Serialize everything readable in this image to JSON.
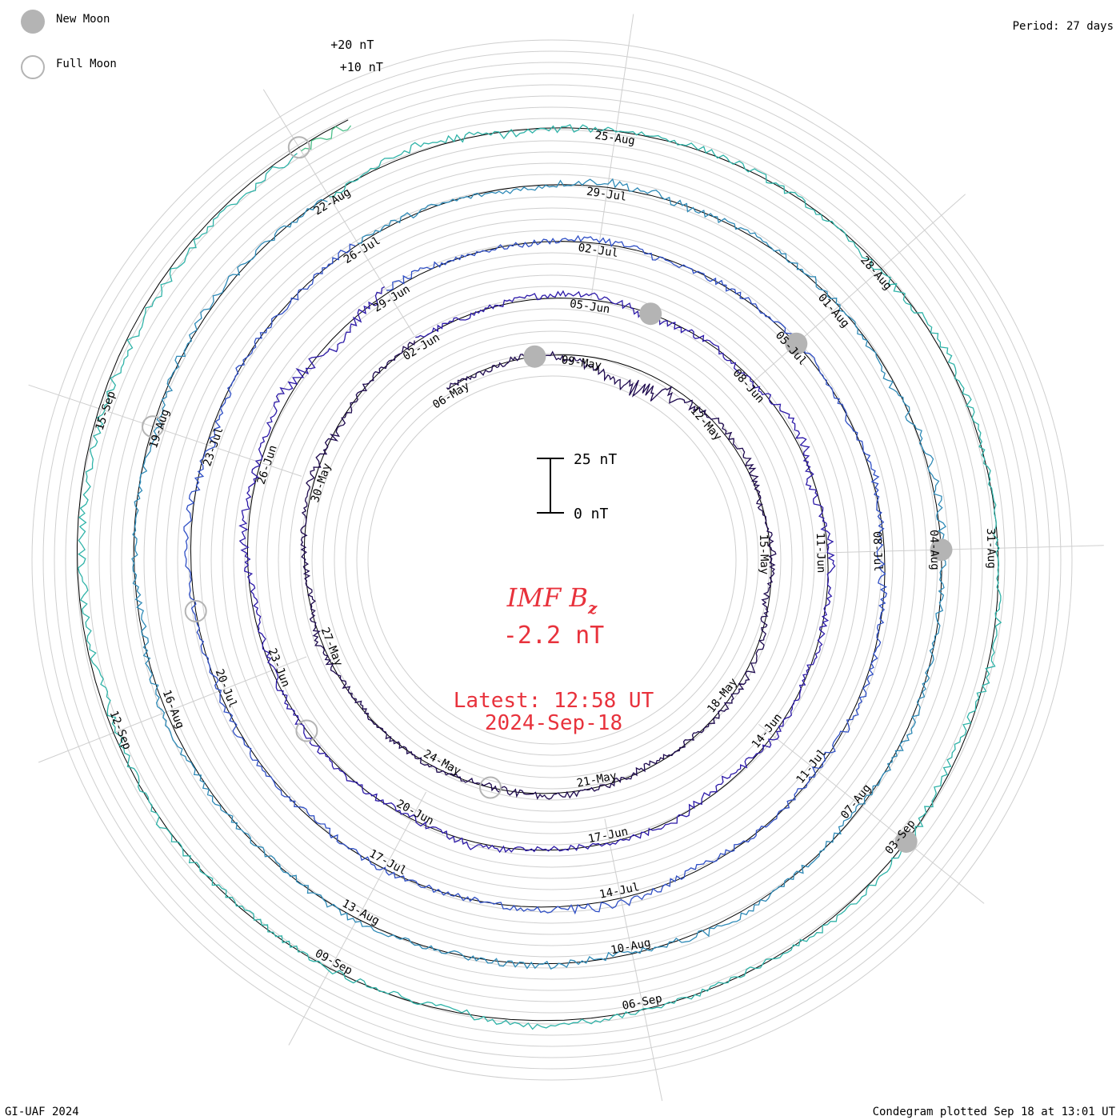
{
  "legend": {
    "new_moon_label": "New Moon",
    "full_moon_label": "Full Moon",
    "new_moon_color": "#b4b4b4",
    "full_moon_color": "#b4b4b4"
  },
  "header": {
    "period_label": "Period: 27 days"
  },
  "footer": {
    "credit": "GI-UAF 2024",
    "plotted": "Condegram plotted Sep 18 at 13:01 UT"
  },
  "center": {
    "title_main": "IMF B",
    "title_sub": "z",
    "current_value": "-2.2 nT",
    "latest_time": "Latest: 12:58 UT",
    "latest_date": "2024-Sep-18",
    "text_color": "#e8323c"
  },
  "scale_bar": {
    "top_label": "25 nT",
    "bottom_label": "0 nT"
  },
  "chart_data": {
    "type": "line",
    "title": "IMF Bz",
    "projection": "spiral condegram",
    "period_days": 27,
    "ring_spacing_nT": 5,
    "ring_labels": [
      "+20 nT",
      "+10 nT"
    ],
    "latest_value_nT": -2.2,
    "start_day": "2024-05-06",
    "end_day": "2024-09-18",
    "turn_colors": [
      "#1e0a4f",
      "#2c19a8",
      "#2f4fc5",
      "#2e8ab7",
      "#2fb3a8",
      "#4cc08a",
      "#7bc640",
      "#a8b61a",
      "#c8a01e",
      "#cf7a1c",
      "#c94a14",
      "#c61010"
    ],
    "date_labels": [
      "06-May",
      "09-May",
      "12-May",
      "15-May",
      "18-May",
      "21-May",
      "24-May",
      "27-May",
      "30-May",
      "02-Jun",
      "05-Jun",
      "08-Jun",
      "11-Jun",
      "14-Jun",
      "17-Jun",
      "20-Jun",
      "23-Jun",
      "26-Jun",
      "29-Jun",
      "02-Jul",
      "05-Jul",
      "08-Jul",
      "11-Jul",
      "14-Jul",
      "17-Jul",
      "20-Jul",
      "23-Jul",
      "26-Jul",
      "29-Jul",
      "01-Aug",
      "04-Aug",
      "07-Aug",
      "10-Aug",
      "13-Aug",
      "16-Aug",
      "19-Aug",
      "22-Aug",
      "25-Aug",
      "28-Aug",
      "31-Aug",
      "03-Sep",
      "06-Sep",
      "09-Sep",
      "12-Sep",
      "15-Sep"
    ],
    "new_moons": [
      "2024-05-08",
      "2024-06-06",
      "2024-07-05",
      "2024-08-04",
      "2024-09-03"
    ],
    "full_moons": [
      "2024-05-23",
      "2024-06-22",
      "2024-07-21",
      "2024-08-19",
      "2024-09-18"
    ],
    "daily_mean_bz_nT": [
      0.4,
      -1.2,
      1.5,
      -2.8,
      -9.6,
      -4.5,
      1.1,
      2.2,
      -0.6,
      0.8,
      -1.9,
      2.4,
      1.0,
      -0.3,
      -1.4,
      0.9,
      1.6,
      -0.7,
      0.2,
      0.5,
      -0.9,
      1.8,
      -1.1,
      0.4,
      2.1,
      -1.6,
      0.3,
      0.7,
      -0.5,
      1.2,
      2.6,
      -1.8,
      0.6,
      -1.0,
      3.4,
      -2.2,
      1.7,
      0.9,
      -0.4,
      1.3,
      -2.5,
      1.0,
      0.2,
      -0.8,
      2.0,
      -1.3,
      0.6,
      1.1,
      -0.2,
      -1.7,
      2.3,
      0.8,
      4.1,
      -3.2,
      1.5,
      0.4,
      -0.6,
      1.9,
      -1.2,
      0.3,
      0.9,
      -0.7,
      1.4,
      -2.0,
      0.5,
      1.6,
      -0.9,
      0.2,
      -1.5,
      2.8,
      1.0,
      -0.4,
      0.7,
      -1.1,
      1.8,
      -0.3,
      0.6,
      2.2,
      -1.9,
      0.4,
      -0.8,
      1.2,
      0.1,
      -1.4,
      2.5,
      -0.6,
      1.0,
      0.3,
      -2.1,
      1.7,
      0.8,
      -0.5,
      1.4,
      -1.0,
      0.2,
      2.0,
      -1.6,
      0.9,
      -0.3,
      1.1,
      -0.7,
      0.5,
      1.6,
      -1.2,
      0.4,
      -2.4,
      1.3,
      0.7,
      -0.9,
      2.7,
      -1.5,
      0.6,
      1.0,
      -0.2,
      -1.8,
      1.5,
      0.3,
      -0.6,
      1.9,
      -2.2,
      0.8,
      1.2,
      -0.4,
      0.5,
      2.1,
      -1.1,
      0.2,
      -0.8,
      1.4,
      -2.2
    ]
  }
}
